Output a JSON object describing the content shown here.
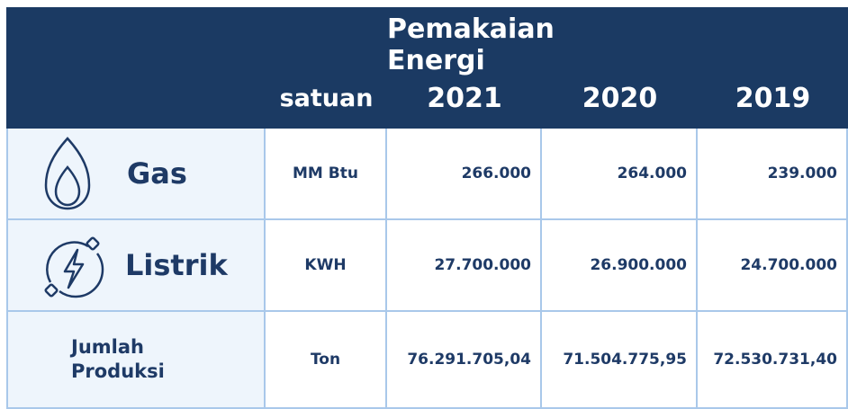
{
  "header": {
    "title": "Pemakaian Energi",
    "unit_label": "satuan",
    "years": [
      "2021",
      "2020",
      "2019"
    ]
  },
  "table": {
    "rows": [
      {
        "label": "Gas",
        "unit": "MM Btu",
        "values": [
          "266.000",
          "264.000",
          "239.000"
        ]
      },
      {
        "label": "Listrik",
        "unit": "KWH",
        "values": [
          "27.700.000",
          "26.900.000",
          "24.700.000"
        ]
      },
      {
        "label": "Jumlah Produksi",
        "unit": "Ton",
        "values": [
          "76.291.705,04",
          "71.504.775,95",
          "72.530.731,40"
        ]
      }
    ]
  }
}
